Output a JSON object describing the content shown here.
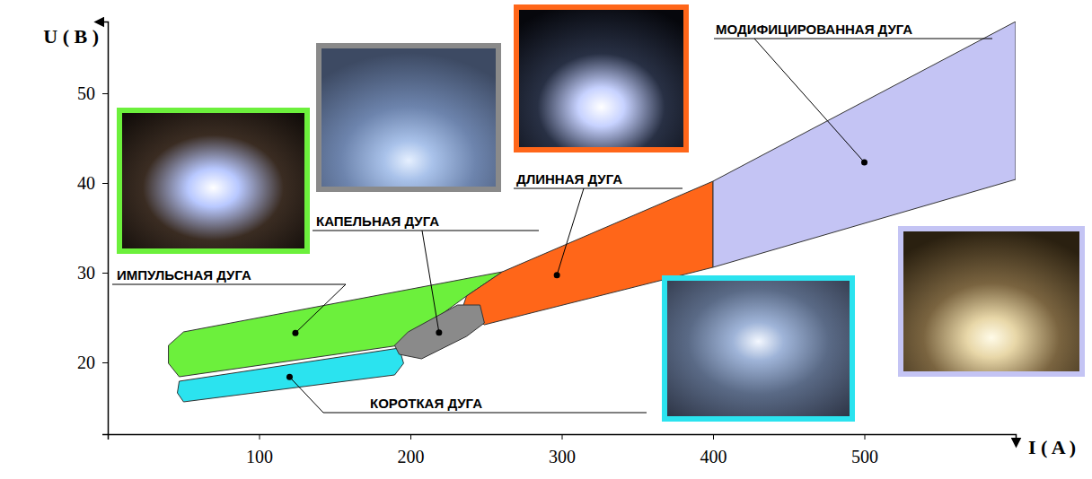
{
  "chart_data": {
    "type": "region",
    "x_label": "I ( A )",
    "y_label": "U ( B )",
    "xlim": [
      0,
      600
    ],
    "ylim": [
      12,
      58
    ],
    "xticks": [
      100,
      200,
      300,
      400,
      500
    ],
    "yticks": [
      20,
      30,
      40,
      50
    ],
    "grid": false,
    "series": [
      {
        "name": "ИМПУЛЬСНАЯ ДУГА",
        "color": "#6cf03c",
        "x": [
          50.1,
          260.8,
          237.1,
          192.6,
          47.2,
          40.1,
          40.1
        ],
        "values": [
          23.4,
          30.1,
          27.4,
          21.9,
          18.4,
          19.9,
          21.9
        ]
      },
      {
        "name": "КОРОТКАЯ ДУГА",
        "color": "#2be3ef",
        "x": [
          50.1,
          189.6,
          195.5,
          192.6,
          47.2,
          46
        ],
        "values": [
          15.6,
          18.6,
          19.9,
          21.6,
          17.9,
          16.6
        ]
      },
      {
        "name": "ДЛИННАЯ ДУГА",
        "color": "#ff6619",
        "x": [
          237.1,
          260.8,
          400,
          400,
          248.9,
          234.1
        ],
        "values": [
          27.4,
          30.1,
          40.2,
          30.6,
          24.2,
          25.9
        ]
      },
      {
        "name": "МОДИФИЦИРОВАННАЯ ДУГА",
        "color": "#c4c4f4",
        "x": [
          400,
          600,
          600,
          400
        ],
        "values": [
          40.2,
          58,
          40.4,
          30.6
        ]
      },
      {
        "name": "КАПЕЛЬНАЯ ДУГА",
        "color": "#8a8a8a",
        "x": [
          192.6,
          207.4,
          237.1,
          248.9,
          246,
          231.2,
          198.5,
          189.6
        ],
        "values": [
          20.9,
          20.4,
          22.9,
          24.4,
          26.4,
          26.4,
          23.4,
          21.9
        ]
      }
    ]
  }
}
